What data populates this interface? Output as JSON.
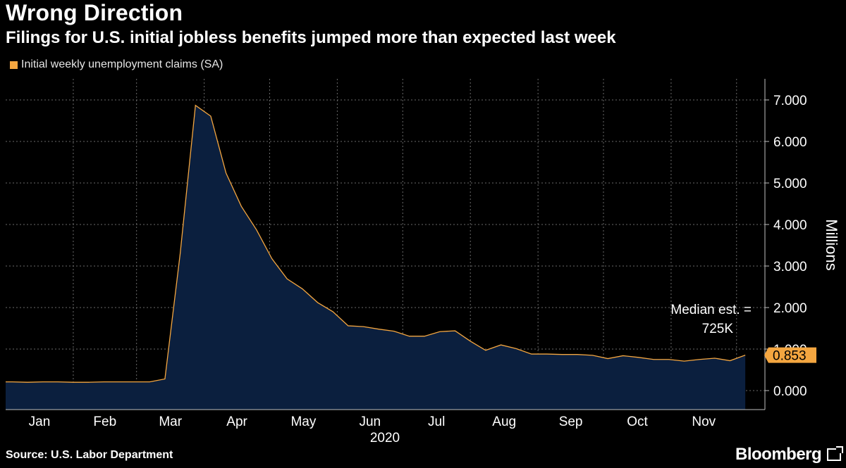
{
  "header": {
    "title": "Wrong Direction",
    "subtitle": "Filings for U.S. initial jobless benefits jumped more than expected last week"
  },
  "legend": {
    "label": "Initial weekly unemployment claims (SA)",
    "color": "#f4a640"
  },
  "footer": {
    "source": "Source: U.S. Labor Department",
    "brand": "Bloomberg"
  },
  "chart_data": {
    "type": "area",
    "title": "Wrong Direction",
    "subtitle": "Filings for U.S. initial jobless benefits jumped more than expected last week",
    "xlabel": "2020",
    "ylabel": "Millions",
    "ylim": [
      0,
      7.0
    ],
    "yticks": [
      "0.000",
      "1.000",
      "2.000",
      "3.000",
      "4.000",
      "5.000",
      "6.000",
      "7.000"
    ],
    "x_ticks": [
      "Jan",
      "Feb",
      "Mar",
      "Apr",
      "May",
      "Jun",
      "Jul",
      "Aug",
      "Sep",
      "Oct",
      "Nov"
    ],
    "x_year_label": "2020",
    "grid": true,
    "legend_position": "top-left",
    "line_color": "#f4a640",
    "fill_color": "#0b1f3e",
    "series": [
      {
        "name": "Initial weekly unemployment claims (SA)",
        "x": [
          "2020-01-04",
          "2020-01-11",
          "2020-01-18",
          "2020-01-25",
          "2020-02-01",
          "2020-02-08",
          "2020-02-15",
          "2020-02-22",
          "2020-02-29",
          "2020-03-07",
          "2020-03-14",
          "2020-03-21",
          "2020-03-28",
          "2020-04-04",
          "2020-04-11",
          "2020-04-18",
          "2020-04-25",
          "2020-05-02",
          "2020-05-09",
          "2020-05-16",
          "2020-05-23",
          "2020-05-30",
          "2020-06-06",
          "2020-06-13",
          "2020-06-20",
          "2020-06-27",
          "2020-07-04",
          "2020-07-11",
          "2020-07-18",
          "2020-07-25",
          "2020-08-01",
          "2020-08-08",
          "2020-08-15",
          "2020-08-22",
          "2020-08-29",
          "2020-09-05",
          "2020-09-12",
          "2020-09-19",
          "2020-09-26",
          "2020-10-03",
          "2020-10-10",
          "2020-10-17",
          "2020-10-24",
          "2020-10-31",
          "2020-11-07",
          "2020-11-14",
          "2020-11-21",
          "2020-11-28",
          "2020-12-05"
        ],
        "values": [
          0.21,
          0.2,
          0.21,
          0.21,
          0.2,
          0.2,
          0.21,
          0.21,
          0.21,
          0.21,
          0.28,
          3.3,
          6.87,
          6.61,
          5.24,
          4.44,
          3.87,
          3.18,
          2.69,
          2.45,
          2.12,
          1.9,
          1.56,
          1.54,
          1.48,
          1.43,
          1.31,
          1.31,
          1.42,
          1.44,
          1.19,
          0.97,
          1.1,
          1.01,
          0.88,
          0.88,
          0.87,
          0.87,
          0.85,
          0.77,
          0.84,
          0.8,
          0.75,
          0.75,
          0.71,
          0.75,
          0.78,
          0.72,
          0.853
        ]
      }
    ],
    "annotations": [
      {
        "text_line1": "Median est. =",
        "text_line2": "725K"
      }
    ],
    "last_value_label": "0.853"
  }
}
